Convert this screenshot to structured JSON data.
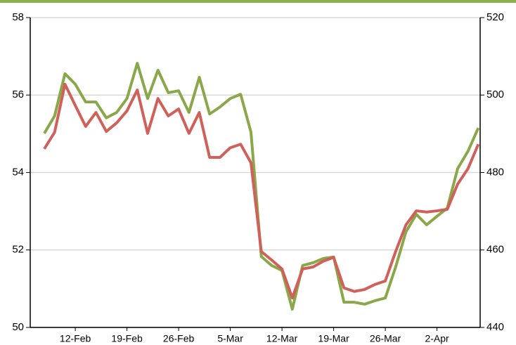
{
  "chart_data": {
    "type": "line",
    "categories": [
      null,
      null,
      null,
      "12-Feb",
      null,
      null,
      null,
      null,
      "19-Feb",
      null,
      null,
      null,
      null,
      "26-Feb",
      null,
      null,
      null,
      null,
      "5-Mar",
      null,
      null,
      null,
      null,
      "12-Mar",
      null,
      null,
      null,
      null,
      "19-Mar",
      null,
      null,
      null,
      null,
      "26-Mar",
      null,
      null,
      null,
      null,
      "2-Apr",
      null,
      null,
      null,
      null
    ],
    "series": [
      {
        "color": "#8aa84a",
        "values": [
          55.01,
          55.46,
          56.55,
          56.28,
          55.82,
          55.82,
          55.41,
          55.55,
          55.91,
          56.82,
          55.91,
          56.64,
          56.06,
          56.11,
          55.55,
          56.46,
          55.51,
          55.69,
          55.91,
          56.02,
          55.04,
          51.83,
          51.6,
          51.47,
          50.47,
          51.6,
          51.67,
          51.78,
          51.82,
          50.65,
          50.65,
          50.6,
          50.69,
          50.76,
          51.56,
          52.47,
          52.92,
          52.65,
          52.87,
          53.08,
          54.1,
          54.55,
          55.15
        ]
      },
      {
        "color": "#d0605a",
        "axis": "y2",
        "values": [
          486.1,
          490.4,
          502.8,
          497.3,
          491.9,
          495.5,
          490.6,
          492.8,
          495.9,
          501.3,
          490.1,
          499.1,
          494.6,
          496.4,
          490.1,
          495.5,
          483.9,
          483.9,
          486.4,
          487.3,
          482.5,
          459.6,
          457.4,
          455.1,
          447.6,
          455.1,
          455.6,
          457.1,
          458.1,
          450.2,
          449.3,
          449.8,
          451.1,
          452.0,
          459.6,
          466.5,
          470.1,
          469.8,
          470.1,
          470.5,
          477.0,
          481.0,
          487.3
        ]
      }
    ],
    "ylim": [
      50,
      58
    ],
    "yticks": [
      50,
      52,
      54,
      56,
      58
    ],
    "y2lim": [
      440,
      520
    ],
    "y2ticks": [
      440,
      460,
      480,
      500,
      520
    ],
    "grid": true
  }
}
